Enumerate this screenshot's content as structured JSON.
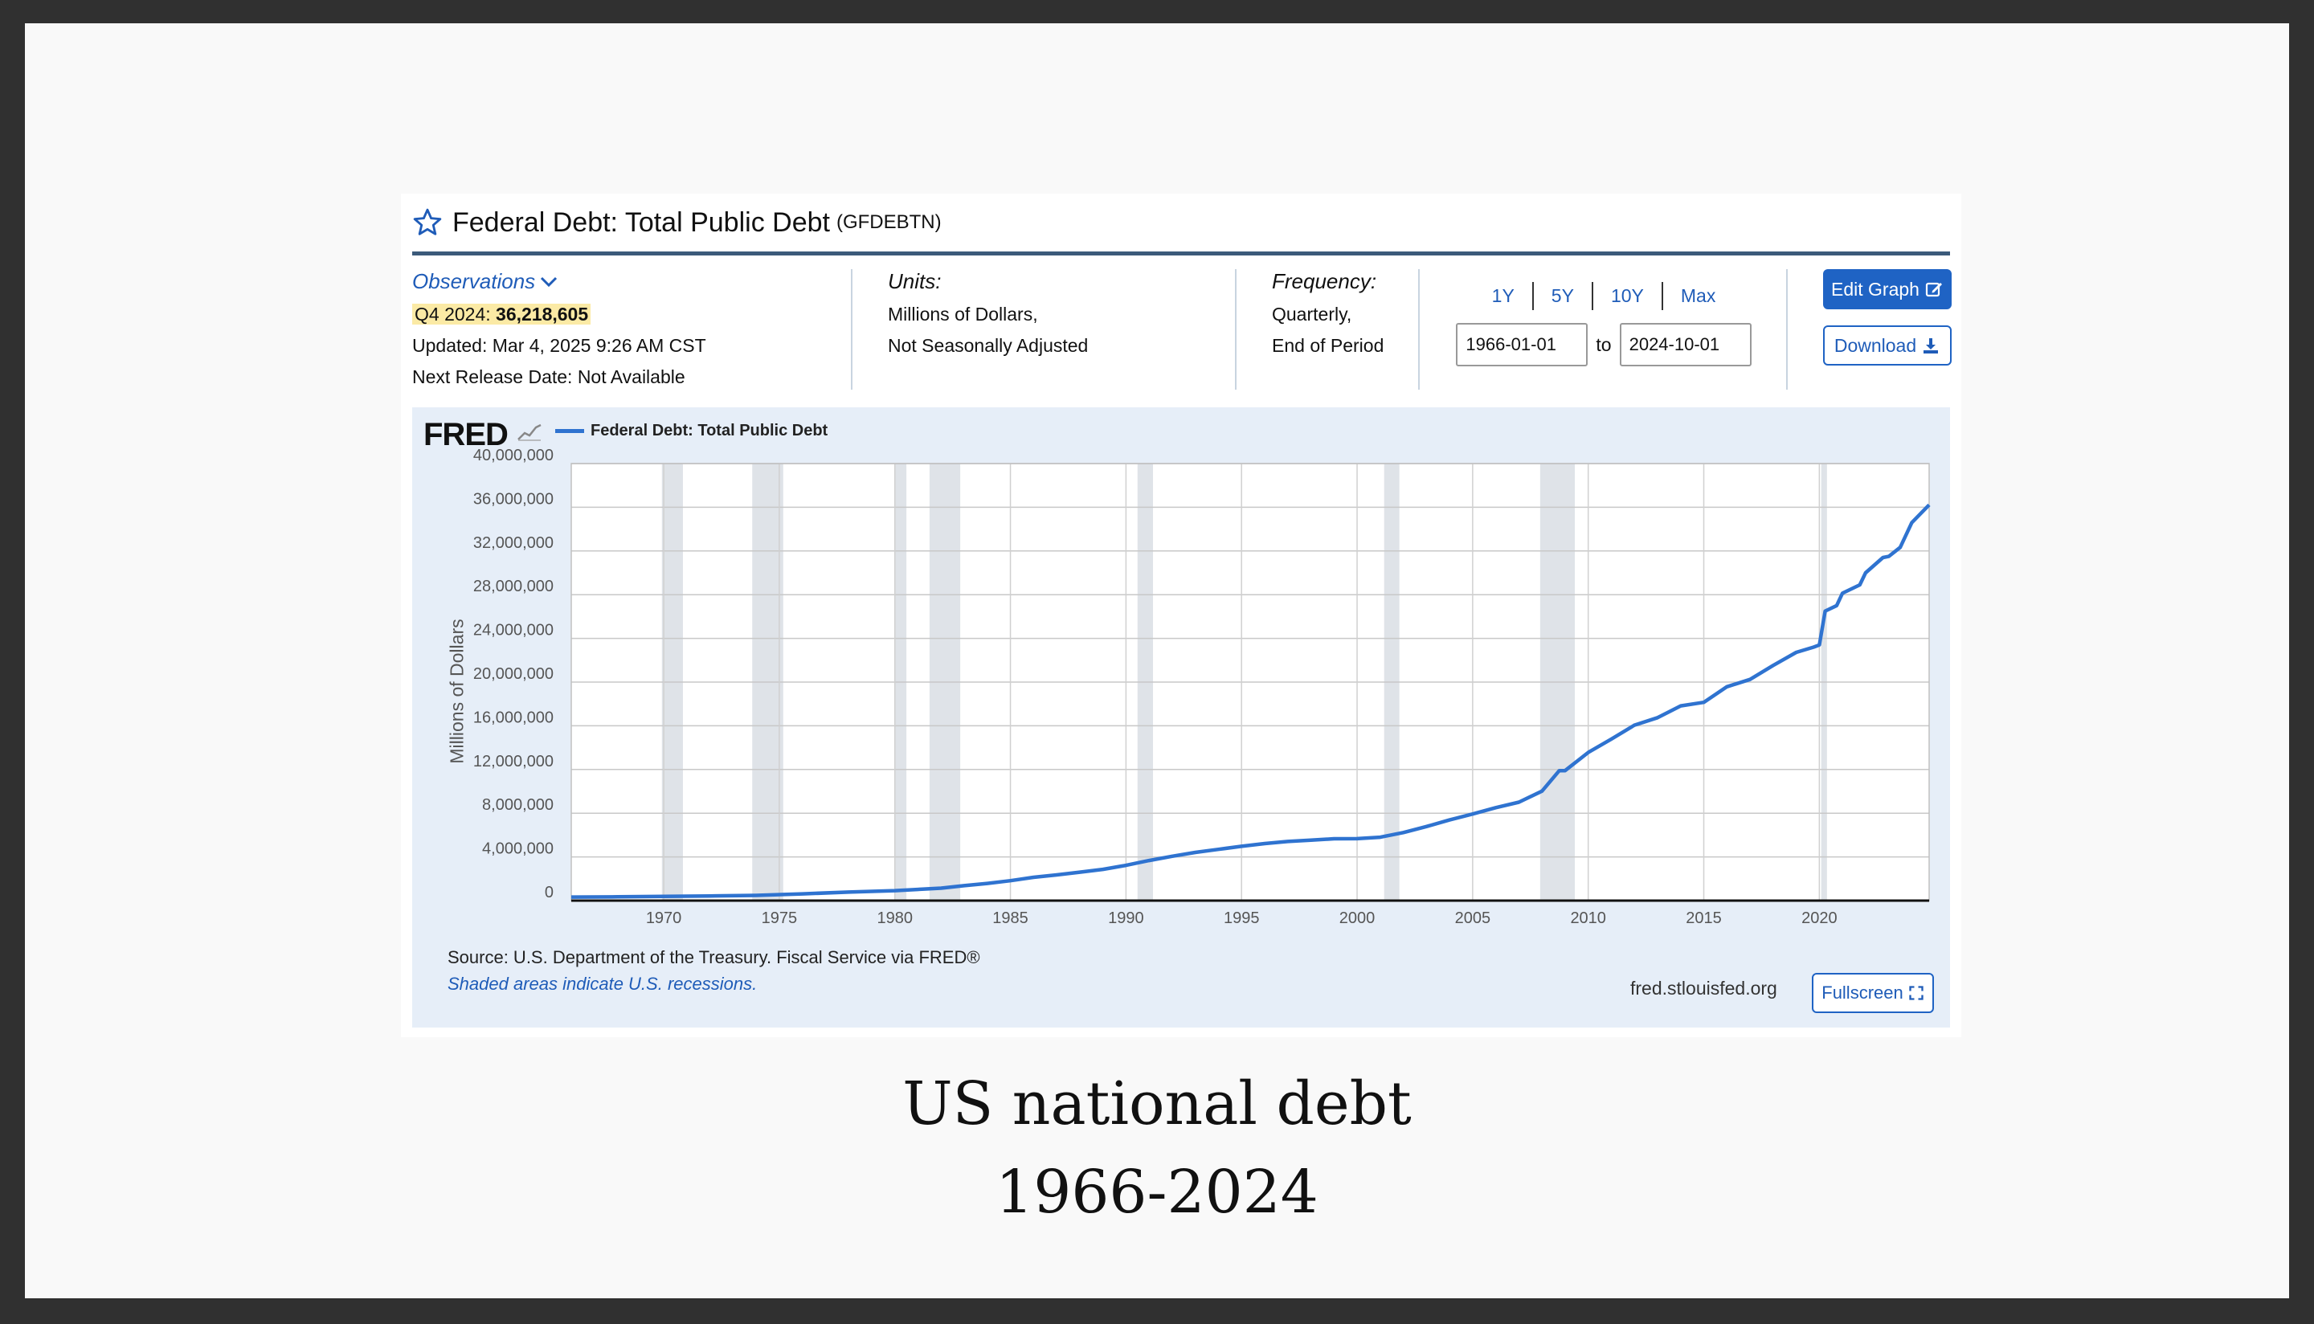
{
  "header": {
    "title": "Federal Debt: Total Public Debt",
    "series_id": "(GFDEBTN)"
  },
  "observations": {
    "label": "Observations",
    "latest_period": "Q4 2024:",
    "latest_value": "36,218,605",
    "updated": "Updated: Mar 4, 2025 9:26 AM CST",
    "next_release": "Next Release Date: Not Available"
  },
  "units": {
    "label": "Units:",
    "line1": "Millions of Dollars,",
    "line2": "Not Seasonally Adjusted"
  },
  "frequency": {
    "label": "Frequency:",
    "line1": "Quarterly,",
    "line2": "End of Period"
  },
  "range_buttons": [
    "1Y",
    "5Y",
    "10Y",
    "Max"
  ],
  "date_range": {
    "start": "1966-01-01",
    "to": "to",
    "end": "2024-10-01"
  },
  "buttons": {
    "edit_graph": "Edit Graph",
    "download": "Download",
    "fullscreen": "Fullscreen"
  },
  "graph": {
    "logo": "FRED",
    "source": "Source: U.S. Department of the Treasury. Fiscal Service via FRED®",
    "shaded_note": "Shaded areas indicate U.S. recessions.",
    "url": "fred.stlouisfed.org"
  },
  "caption": {
    "line1": "US national debt",
    "line2": "1966-2024"
  },
  "colors": {
    "line": "#2f73d0",
    "recession": "#dfe3e8",
    "accent": "#1f63c4"
  },
  "icons": [
    "star-icon",
    "chevron-down-icon",
    "edit-icon",
    "download-icon",
    "fullscreen-icon"
  ],
  "chart_data": {
    "type": "line",
    "legend": [
      "Federal Debt: Total Public Debt"
    ],
    "ylabel": "Millions of Dollars",
    "xlim": [
      1966.0,
      2024.75
    ],
    "ylim": [
      0,
      40000000
    ],
    "yticks": [
      "0",
      "4,000,000",
      "8,000,000",
      "12,000,000",
      "16,000,000",
      "20,000,000",
      "24,000,000",
      "28,000,000",
      "32,000,000",
      "36,000,000",
      "40,000,000"
    ],
    "xticks": [
      "1970",
      "1975",
      "1980",
      "1985",
      "1990",
      "1995",
      "2000",
      "2005",
      "2010",
      "2015",
      "2020"
    ],
    "recessions": [
      [
        1969.92,
        1970.83
      ],
      [
        1973.83,
        1975.17
      ],
      [
        1980.0,
        1980.5
      ],
      [
        1981.5,
        1982.83
      ],
      [
        1990.5,
        1991.17
      ],
      [
        2001.17,
        2001.83
      ],
      [
        2007.92,
        2009.42
      ],
      [
        2020.08,
        2020.33
      ]
    ],
    "series": [
      {
        "name": "Federal Debt: Total Public Debt",
        "x": [
          1966.0,
          1968,
          1970,
          1972,
          1974,
          1976,
          1978,
          1980,
          1982,
          1983,
          1984,
          1985,
          1986,
          1987,
          1988,
          1989,
          1990,
          1991,
          1992,
          1993,
          1994,
          1995,
          1996,
          1997,
          1998,
          1999,
          2000,
          2001,
          2002,
          2003,
          2004,
          2005,
          2006,
          2007,
          2008,
          2008.75,
          2009,
          2010,
          2011,
          2012,
          2013,
          2014,
          2015,
          2016,
          2017,
          2018,
          2019,
          2019.75,
          2020.0,
          2020.25,
          2020.75,
          2021,
          2021.75,
          2022,
          2022.75,
          2023,
          2023.5,
          2024,
          2024.75
        ],
        "values": [
          320000,
          345000,
          380000,
          430000,
          480000,
          620000,
          780000,
          910000,
          1140000,
          1370000,
          1570000,
          1820000,
          2130000,
          2350000,
          2600000,
          2860000,
          3230000,
          3670000,
          4060000,
          4410000,
          4690000,
          4970000,
          5220000,
          5410000,
          5530000,
          5660000,
          5670000,
          5800000,
          6230000,
          6780000,
          7380000,
          7930000,
          8510000,
          9010000,
          10020000,
          11900000,
          11900000,
          13560000,
          14790000,
          16060000,
          16740000,
          17820000,
          18150000,
          19570000,
          20240000,
          21520000,
          22720000,
          23200000,
          23400000,
          26500000,
          27000000,
          28130000,
          28900000,
          30000000,
          31400000,
          31500000,
          32330000,
          34590000,
          36218605
        ]
      }
    ]
  }
}
